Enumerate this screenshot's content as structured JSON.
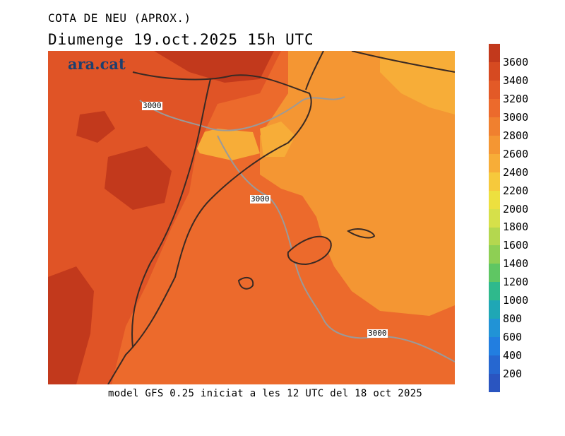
{
  "title": "COTA DE NEU (APROX.)",
  "subtitle": "Diumenge  19.oct.2025  15h UTC",
  "brand": "ara.cat",
  "footer": "model GFS 0.25 iniciat a les 12 UTC del 18 oct 2025",
  "contour_labels": [
    "3000",
    "3000",
    "3000"
  ],
  "colorbar": {
    "labels": [
      "3600",
      "3400",
      "3200",
      "3000",
      "2800",
      "2600",
      "2400",
      "2200",
      "2000",
      "1800",
      "1600",
      "1400",
      "1200",
      "1000",
      "800",
      "600",
      "400",
      "200"
    ],
    "colors": [
      "#c2391c",
      "#d64a21",
      "#e35a27",
      "#ec6a2c",
      "#f0802f",
      "#f49633",
      "#f7ad38",
      "#f6c93c",
      "#ede03f",
      "#d6e04a",
      "#b4d74f",
      "#8ecf54",
      "#5fc663",
      "#2fb98c",
      "#1fa7b5",
      "#2193d6",
      "#227ee0",
      "#2667d0",
      "#2a55c0"
    ]
  },
  "map_colors": {
    "base": "#ec6a2c",
    "dark": "#c2391c",
    "medium": "#e05426",
    "light": "#f49633",
    "yellow": "#f7ad38",
    "coast": "#3a2a24",
    "contour": "#9a9a9a"
  }
}
